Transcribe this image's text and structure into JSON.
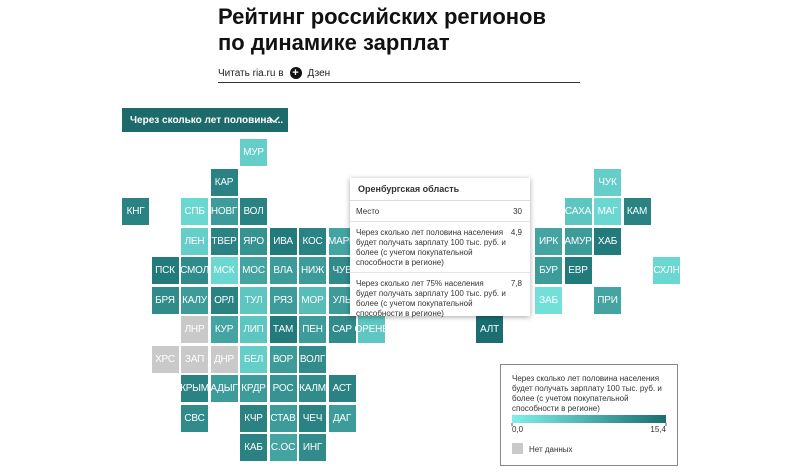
{
  "header": {
    "title": "Рейтинг российских регионов по динамике зарплат",
    "read_prefix": "Читать ria.ru в",
    "read_brand": "Дзен"
  },
  "dropdown": {
    "label": "Через сколько лет половина ..."
  },
  "colors": {
    "low": "#7ff0e8",
    "high": "#1a6e70",
    "no_data": "#c9c9c9"
  },
  "grid": [
    [
      null,
      null,
      null,
      null,
      {
        "label": "МУР",
        "value": 4
      }
    ],
    [
      null,
      null,
      null,
      {
        "label": "КАР",
        "value": 13
      },
      null,
      null,
      null,
      null,
      null,
      null,
      null,
      null,
      null,
      null,
      null,
      null,
      {
        "label": "ЧУК",
        "value": 4
      }
    ],
    [
      {
        "label": "КНГ",
        "value": 13
      },
      null,
      {
        "label": "СПБ",
        "value": 3
      },
      {
        "label": "НОВГ",
        "value": 10
      },
      {
        "label": "ВОЛ",
        "value": 13
      },
      null,
      null,
      null,
      null,
      null,
      null,
      null,
      null,
      null,
      null,
      {
        "label": "САХА",
        "value": 5
      },
      {
        "label": "МАГ",
        "value": 3
      },
      {
        "label": "КАМ",
        "value": 13
      }
    ],
    [
      null,
      null,
      {
        "label": "ЛЕН",
        "value": 4
      },
      {
        "label": "ТВЕР",
        "value": 13
      },
      {
        "label": "ЯРО",
        "value": 11
      },
      {
        "label": "ИВА",
        "value": 14
      },
      {
        "label": "КОС",
        "value": 13
      },
      {
        "label": "МАРИ",
        "value": 9
      },
      null,
      null,
      null,
      null,
      null,
      null,
      {
        "label": "ИРК",
        "value": 9
      },
      {
        "label": "АМУР",
        "value": 10
      },
      {
        "label": "ХАБ",
        "value": 14
      }
    ],
    [
      null,
      {
        "label": "ПСК",
        "value": 14
      },
      {
        "label": "СМОЛ",
        "value": 12
      },
      {
        "label": "МСК",
        "value": 3
      },
      {
        "label": "МОС",
        "value": 9
      },
      {
        "label": "ВЛА",
        "value": 10
      },
      {
        "label": "НИЖ",
        "value": 10
      },
      {
        "label": "ЧУВ",
        "value": 12
      },
      null,
      null,
      null,
      null,
      null,
      null,
      {
        "label": "БУР",
        "value": 10
      },
      {
        "label": "ЕВР",
        "value": 14
      },
      null,
      null,
      {
        "label": "СХЛН",
        "value": 3
      }
    ],
    [
      null,
      {
        "label": "БРЯ",
        "value": 12
      },
      {
        "label": "КАЛУ",
        "value": 10
      },
      {
        "label": "ОРЛ",
        "value": 13
      },
      {
        "label": "ТУЛ",
        "value": 5
      },
      {
        "label": "РЯЗ",
        "value": 10
      },
      {
        "label": "МОР",
        "value": 6
      },
      {
        "label": "УЛЬ",
        "value": 10
      },
      null,
      null,
      null,
      null,
      null,
      null,
      {
        "label": "ЗАБ",
        "value": 2
      },
      null,
      {
        "label": "ПРИ",
        "value": 9
      }
    ],
    [
      null,
      null,
      {
        "label": "ЛНР",
        "value": null
      },
      {
        "label": "КУР",
        "value": 9
      },
      {
        "label": "ЛИП",
        "value": 5
      },
      {
        "label": "ТАМ",
        "value": 14
      },
      {
        "label": "ПЕН",
        "value": 10
      },
      {
        "label": "САР",
        "value": 12
      },
      {
        "label": "ОРЕНБ",
        "value": 4.9
      },
      null,
      null,
      null,
      {
        "label": "АЛТ",
        "value": 15.4
      }
    ],
    [
      null,
      {
        "label": "ХРС",
        "value": null
      },
      {
        "label": "ЗАП",
        "value": null
      },
      {
        "label": "ДНР",
        "value": null
      },
      {
        "label": "БЕЛ",
        "value": 4
      },
      {
        "label": "ВОР",
        "value": 10
      },
      {
        "label": "ВОЛГ",
        "value": 12
      }
    ],
    [
      null,
      null,
      {
        "label": "КРЫМ",
        "value": 13
      },
      {
        "label": "АДЫГ",
        "value": 10
      },
      {
        "label": "КРДР",
        "value": 10
      },
      {
        "label": "РОС",
        "value": 11
      },
      {
        "label": "КАЛМ",
        "value": 12
      },
      {
        "label": "АСТ",
        "value": 13
      }
    ],
    [
      null,
      null,
      {
        "label": "СВС",
        "value": 12
      },
      null,
      {
        "label": "КЧР",
        "value": 13
      },
      {
        "label": "СТАВ",
        "value": 10
      },
      {
        "label": "ЧЕЧ",
        "value": 13
      },
      {
        "label": "ДАГ",
        "value": 10
      }
    ],
    [
      null,
      null,
      null,
      null,
      {
        "label": "КАБ",
        "value": 13
      },
      {
        "label": "С.ОС",
        "value": 9
      },
      {
        "label": "ИНГ",
        "value": 12
      }
    ]
  ],
  "tooltip": {
    "title": "Оренбургская область",
    "rows": [
      {
        "label": "Место",
        "value": 30
      },
      {
        "label": "Через сколько лет половина населения будет получать зарплату 100 тыс. руб. и более (с учетом покупательной способности в регионе)",
        "value": {
          "value": 4.9,
          "label": "4,9"
        }
      },
      {
        "label": "Через сколько лет 75% населения будет получать зарплату 100 тыс. руб. и более (с учетом покупательной способности в регионе)",
        "value": {
          "value": 7.8,
          "label": "7,8"
        }
      }
    ]
  },
  "legend": {
    "title": "Через сколько лет половина населения будет получать зарплату 100 тыс. руб. и более (с учетом покупательной способности в регионе)",
    "min": {
      "value": 0,
      "label": "0,0"
    },
    "max": {
      "value": 15.4,
      "label": "15,4"
    },
    "no_data": "Нет данных"
  }
}
